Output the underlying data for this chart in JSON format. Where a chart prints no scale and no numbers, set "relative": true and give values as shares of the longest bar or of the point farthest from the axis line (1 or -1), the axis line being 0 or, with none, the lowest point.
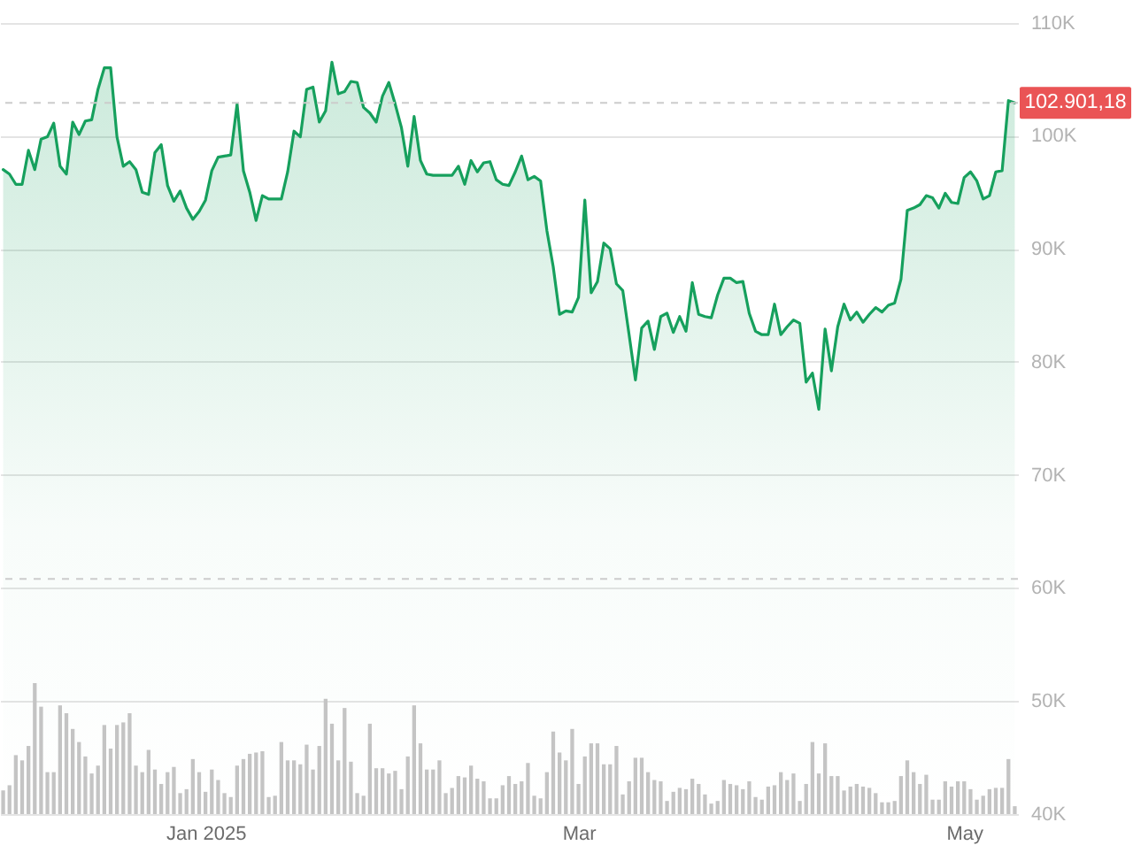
{
  "chart_data": [
    {
      "type": "area",
      "x": [
        "2024-11-30",
        "2024-12-01",
        "2024-12-02",
        "2024-12-03",
        "2024-12-04",
        "2024-12-05",
        "2024-12-06",
        "2024-12-07",
        "2024-12-08",
        "2024-12-09",
        "2024-12-10",
        "2024-12-11",
        "2024-12-12",
        "2024-12-13",
        "2024-12-14",
        "2024-12-15",
        "2024-12-16",
        "2024-12-17",
        "2024-12-18",
        "2024-12-19",
        "2024-12-20",
        "2024-12-21",
        "2024-12-22",
        "2024-12-23",
        "2024-12-24",
        "2024-12-25",
        "2024-12-26",
        "2024-12-27",
        "2024-12-28",
        "2024-12-29",
        "2024-12-30",
        "2024-12-31",
        "2025-01-01",
        "2025-01-02",
        "2025-01-03",
        "2025-01-04",
        "2025-01-05",
        "2025-01-06",
        "2025-01-07",
        "2025-01-08",
        "2025-01-09",
        "2025-01-10",
        "2025-01-11",
        "2025-01-12",
        "2025-01-13",
        "2025-01-14",
        "2025-01-15",
        "2025-01-16",
        "2025-01-17",
        "2025-01-18",
        "2025-01-19",
        "2025-01-20",
        "2025-01-21",
        "2025-01-22",
        "2025-01-23",
        "2025-01-24",
        "2025-01-25",
        "2025-01-26",
        "2025-01-27",
        "2025-01-28",
        "2025-01-29",
        "2025-01-30",
        "2025-01-31",
        "2025-02-01",
        "2025-02-02",
        "2025-02-03",
        "2025-02-04",
        "2025-02-05",
        "2025-02-06",
        "2025-02-07",
        "2025-02-08",
        "2025-02-09",
        "2025-02-10",
        "2025-02-11",
        "2025-02-12",
        "2025-02-13",
        "2025-02-14",
        "2025-02-15",
        "2025-02-16",
        "2025-02-17",
        "2025-02-18",
        "2025-02-19",
        "2025-02-20",
        "2025-02-21",
        "2025-02-22",
        "2025-02-23",
        "2025-02-24",
        "2025-02-25",
        "2025-02-26",
        "2025-02-27",
        "2025-02-28",
        "2025-03-01",
        "2025-03-02",
        "2025-03-03",
        "2025-03-04",
        "2025-03-05",
        "2025-03-06",
        "2025-03-07",
        "2025-03-08",
        "2025-03-09",
        "2025-03-10",
        "2025-03-11",
        "2025-03-12",
        "2025-03-13",
        "2025-03-14",
        "2025-03-15",
        "2025-03-16",
        "2025-03-17",
        "2025-03-18",
        "2025-03-19",
        "2025-03-20",
        "2025-03-21",
        "2025-03-22",
        "2025-03-23",
        "2025-03-24",
        "2025-03-25",
        "2025-03-26",
        "2025-03-27",
        "2025-03-28",
        "2025-03-29",
        "2025-03-30",
        "2025-03-31",
        "2025-04-01",
        "2025-04-02",
        "2025-04-03",
        "2025-04-04",
        "2025-04-05",
        "2025-04-06",
        "2025-04-07",
        "2025-04-08",
        "2025-04-09",
        "2025-04-10",
        "2025-04-11",
        "2025-04-12",
        "2025-04-13",
        "2025-04-14",
        "2025-04-15",
        "2025-04-16",
        "2025-04-17",
        "2025-04-18",
        "2025-04-19",
        "2025-04-20",
        "2025-04-21",
        "2025-04-22",
        "2025-04-23",
        "2025-04-24",
        "2025-04-25",
        "2025-04-26",
        "2025-04-27",
        "2025-04-28",
        "2025-04-29",
        "2025-04-30",
        "2025-05-01",
        "2025-05-02",
        "2025-05-03",
        "2025-05-04",
        "2025-05-05",
        "2025-05-06",
        "2025-05-07",
        "2025-05-08",
        "2025-05-09"
      ],
      "values": [
        97000,
        96600,
        95700,
        95700,
        98700,
        97000,
        99700,
        99900,
        101100,
        97300,
        96600,
        101200,
        100100,
        101300,
        101400,
        104100,
        106000,
        106000,
        99900,
        97300,
        97700,
        97000,
        95000,
        94800,
        98500,
        99200,
        95600,
        94200,
        95100,
        93600,
        92600,
        93300,
        94300,
        96900,
        98100,
        98200,
        98300,
        102800,
        96900,
        95000,
        92500,
        94700,
        94400,
        94400,
        94400,
        96800,
        100400,
        99900,
        104100,
        104300,
        101200,
        102200,
        106500,
        103700,
        103900,
        104800,
        104700,
        102500,
        102000,
        101200,
        103500,
        104700,
        102800,
        100700,
        97300,
        101700,
        97800,
        96600,
        96500,
        96500,
        96500,
        96500,
        97300,
        95700,
        97800,
        96800,
        97600,
        97700,
        96100,
        95700,
        95600,
        96800,
        98200,
        96100,
        96400,
        96000,
        91600,
        88400,
        84200,
        84500,
        84400,
        85700,
        94300,
        86100,
        87100,
        90500,
        90000,
        86900,
        86300,
        82400,
        78400,
        83000,
        83600,
        81100,
        84000,
        84300,
        82600,
        84000,
        82700,
        87000,
        84200,
        84000,
        83900,
        85900,
        87400,
        87400,
        87000,
        87100,
        84300,
        82700,
        82400,
        82400,
        85100,
        82400,
        83100,
        83700,
        83400,
        78200,
        79000,
        75800,
        82900,
        79200,
        83100,
        85100,
        83700,
        84400,
        83500,
        84200,
        84800,
        84400,
        85000,
        85200,
        87300,
        93400,
        93600,
        93900,
        94700,
        94500,
        93600,
        94900,
        94100,
        94000,
        96300,
        96800,
        96000,
        94400,
        94700,
        96800,
        96900,
        103100,
        102900
      ],
      "color": "#16a05d",
      "xlim": [
        "2024-11-29T12:00",
        "2025-05-09T12:00"
      ],
      "xticks": [
        {
          "value": "2025-01-01",
          "label": "Jan 2025"
        },
        {
          "value": "2025-03-01",
          "label": "Mar"
        },
        {
          "value": "2025-05-01",
          "label": "May"
        }
      ],
      "ylim": [
        40000,
        112000
      ],
      "yticks": [
        {
          "value": 40000,
          "label": "40K"
        },
        {
          "value": 50000,
          "label": "50K"
        },
        {
          "value": 60000,
          "label": "60K"
        },
        {
          "value": 70000,
          "label": "70K"
        },
        {
          "value": 80000,
          "label": "80K"
        },
        {
          "value": 90000,
          "label": "90K"
        },
        {
          "value": 100000,
          "label": "100K"
        },
        {
          "value": 110000,
          "label": "110K"
        }
      ],
      "grid": "y",
      "ref_lines": [
        {
          "axis": "y",
          "value": 102901.18,
          "label": "102.901,18",
          "color": "#cccccc",
          "line_style": "dashed"
        },
        {
          "axis": "y",
          "value": 60800,
          "color": "#cccccc",
          "line_style": "dashed"
        }
      ]
    },
    {
      "type": "bar",
      "relative": true,
      "categories": [
        null,
        null,
        null,
        null,
        null,
        null,
        null,
        null,
        null,
        null,
        null,
        null,
        null,
        null,
        null,
        null,
        null,
        null,
        null,
        null,
        null,
        null,
        null,
        null,
        null,
        null,
        null,
        null,
        null,
        null,
        null,
        null,
        null,
        null,
        null,
        null,
        null,
        null,
        null,
        null,
        null,
        null,
        null,
        null,
        null,
        null,
        null,
        null,
        null,
        null,
        null,
        null,
        null,
        null,
        null,
        null,
        null,
        null,
        null,
        null,
        null,
        null,
        null,
        null,
        null,
        null,
        null,
        null,
        null,
        null,
        null,
        null,
        null,
        null,
        null,
        null,
        null,
        null,
        null,
        null,
        null,
        null,
        null,
        null,
        null,
        null,
        null,
        null,
        null,
        null,
        null,
        null,
        null,
        null,
        null,
        null,
        null,
        null,
        null,
        null,
        null,
        null,
        null,
        null,
        null,
        null,
        null,
        null,
        null,
        null,
        null,
        null,
        null,
        null,
        null,
        null,
        null,
        null,
        null,
        null,
        null,
        null,
        null,
        null,
        null,
        null,
        null,
        null,
        null,
        null,
        null,
        null,
        null,
        null,
        null,
        null,
        null,
        null,
        null,
        null,
        null,
        null,
        null,
        null,
        null,
        null,
        null,
        null,
        null,
        null,
        null,
        null,
        null,
        null,
        null,
        null,
        null,
        null,
        null,
        null,
        null
      ],
      "values": [
        0.18,
        0.22,
        0.45,
        0.41,
        0.52,
        1,
        0.82,
        0.32,
        0.32,
        0.83,
        0.77,
        0.65,
        0.55,
        0.44,
        0.31,
        0.37,
        0.68,
        0.5,
        0.68,
        0.7,
        0.77,
        0.37,
        0.32,
        0.49,
        0.34,
        0.23,
        0.32,
        0.36,
        0.16,
        0.19,
        0.42,
        0.32,
        0.17,
        0.34,
        0.26,
        0.16,
        0.13,
        0.37,
        0.42,
        0.46,
        0.47,
        0.48,
        0.13,
        0.14,
        0.55,
        0.41,
        0.41,
        0.38,
        0.53,
        0.34,
        0.52,
        0.88,
        0.69,
        0.41,
        0.81,
        0.4,
        0.16,
        0.14,
        0.69,
        0.35,
        0.35,
        0.31,
        0.33,
        0.19,
        0.44,
        0.83,
        0.54,
        0.34,
        0.34,
        0.41,
        0.16,
        0.2,
        0.29,
        0.28,
        0.37,
        0.27,
        0.25,
        0.12,
        0.12,
        0.22,
        0.29,
        0.23,
        0.25,
        0.39,
        0.14,
        0.12,
        0.32,
        0.63,
        0.47,
        0.41,
        0.65,
        0.23,
        0.44,
        0.54,
        0.54,
        0.38,
        0.38,
        0.52,
        0.15,
        0.25,
        0.43,
        0.43,
        0.32,
        0.26,
        0.25,
        0.1,
        0.17,
        0.2,
        0.19,
        0.27,
        0.23,
        0.15,
        0.08,
        0.1,
        0.26,
        0.23,
        0.22,
        0.19,
        0.25,
        0.13,
        0.11,
        0.21,
        0.22,
        0.32,
        0.26,
        0.31,
        0.1,
        0.23,
        0.55,
        0.31,
        0.54,
        0.29,
        0.29,
        0.18,
        0.21,
        0.23,
        0.21,
        0.2,
        0.16,
        0.09,
        0.09,
        0.1,
        0.29,
        0.41,
        0.32,
        0.23,
        0.3,
        0.11,
        0.11,
        0.25,
        0.21,
        0.25,
        0.25,
        0.19,
        0.11,
        0.14,
        0.19,
        0.2,
        0.2,
        0.42,
        0.06
      ],
      "color": "#c4c4c4"
    }
  ]
}
